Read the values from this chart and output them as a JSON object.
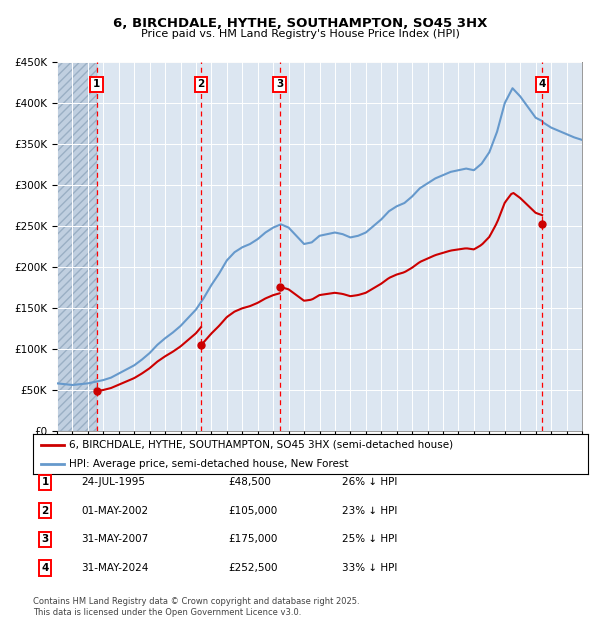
{
  "title": "6, BIRCHDALE, HYTHE, SOUTHAMPTON, SO45 3HX",
  "subtitle": "Price paid vs. HM Land Registry's House Price Index (HPI)",
  "ylim": [
    0,
    450000
  ],
  "yticks": [
    0,
    50000,
    100000,
    150000,
    200000,
    250000,
    300000,
    350000,
    400000,
    450000
  ],
  "ytick_labels": [
    "£0",
    "£50K",
    "£100K",
    "£150K",
    "£200K",
    "£250K",
    "£300K",
    "£350K",
    "£400K",
    "£450K"
  ],
  "xlim_start": 1993.0,
  "xlim_end": 2027.0,
  "sale_dates": [
    1995.56,
    2002.33,
    2007.42,
    2024.42
  ],
  "sale_prices": [
    48500,
    105000,
    175000,
    252500
  ],
  "sale_labels": [
    "1",
    "2",
    "3",
    "4"
  ],
  "sale_date_strs": [
    "24-JUL-1995",
    "01-MAY-2002",
    "31-MAY-2007",
    "31-MAY-2024"
  ],
  "sale_price_strs": [
    "£48,500",
    "£105,000",
    "£175,000",
    "£252,500"
  ],
  "sale_pct_strs": [
    "26% ↓ HPI",
    "23% ↓ HPI",
    "25% ↓ HPI",
    "33% ↓ HPI"
  ],
  "legend_house": "6, BIRCHDALE, HYTHE, SOUTHAMPTON, SO45 3HX (semi-detached house)",
  "legend_hpi": "HPI: Average price, semi-detached house, New Forest",
  "house_color": "#cc0000",
  "hpi_color": "#6699cc",
  "footnote": "Contains HM Land Registry data © Crown copyright and database right 2025.\nThis data is licensed under the Open Government Licence v3.0.",
  "background_color": "#ffffff",
  "plot_bg_color": "#dce6f1",
  "hatch_bg_color": "#c0cfe0",
  "hpi_x": [
    1993.0,
    1993.5,
    1994.0,
    1994.5,
    1995.0,
    1995.5,
    1996.0,
    1996.5,
    1997.0,
    1997.5,
    1998.0,
    1998.5,
    1999.0,
    1999.5,
    2000.0,
    2000.5,
    2001.0,
    2001.5,
    2002.0,
    2002.5,
    2003.0,
    2003.5,
    2004.0,
    2004.5,
    2005.0,
    2005.5,
    2006.0,
    2006.5,
    2007.0,
    2007.5,
    2008.0,
    2008.5,
    2009.0,
    2009.5,
    2010.0,
    2010.5,
    2011.0,
    2011.5,
    2012.0,
    2012.5,
    2013.0,
    2013.5,
    2014.0,
    2014.5,
    2015.0,
    2015.5,
    2016.0,
    2016.5,
    2017.0,
    2017.5,
    2018.0,
    2018.5,
    2019.0,
    2019.5,
    2020.0,
    2020.5,
    2021.0,
    2021.5,
    2022.0,
    2022.5,
    2023.0,
    2023.5,
    2024.0,
    2024.42,
    2024.5,
    2025.0,
    2025.5,
    2026.0,
    2026.5,
    2027.0
  ],
  "hpi_y": [
    58000,
    57000,
    56000,
    57000,
    58000,
    60000,
    62000,
    65000,
    70000,
    75000,
    80000,
    87000,
    95000,
    105000,
    113000,
    120000,
    128000,
    138000,
    148000,
    162000,
    178000,
    192000,
    208000,
    218000,
    224000,
    228000,
    234000,
    242000,
    248000,
    252000,
    248000,
    238000,
    228000,
    230000,
    238000,
    240000,
    242000,
    240000,
    236000,
    238000,
    242000,
    250000,
    258000,
    268000,
    274000,
    278000,
    286000,
    296000,
    302000,
    308000,
    312000,
    316000,
    318000,
    320000,
    318000,
    326000,
    340000,
    365000,
    400000,
    418000,
    408000,
    395000,
    382000,
    378000,
    376000,
    370000,
    366000,
    362000,
    358000,
    355000
  ]
}
